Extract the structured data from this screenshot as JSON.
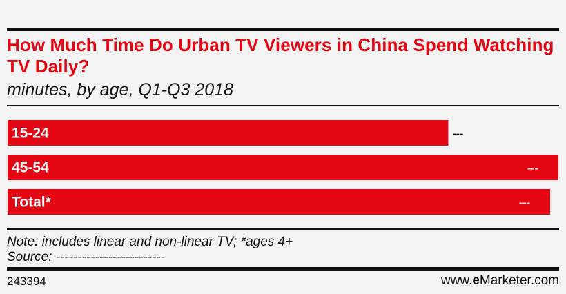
{
  "header": {
    "title": "How Much Time Do Urban TV Viewers in China Spend Watching TV Daily?",
    "subtitle": "minutes, by age, Q1-Q3 2018"
  },
  "chart_data": {
    "type": "bar",
    "orientation": "horizontal",
    "title": "How Much Time Do Urban TV Viewers in China Spend Watching TV Daily?",
    "subtitle": "minutes, by age, Q1-Q3 2018",
    "categories": [
      "15-24",
      "45-54",
      "Total*"
    ],
    "values": [
      0.8,
      1.0,
      0.985
    ],
    "value_scale": "relative to longest bar",
    "value_labels": [
      "---",
      "---",
      "---"
    ],
    "bar_color": "#e30613",
    "grid": false,
    "legend": "none"
  },
  "footer": {
    "note": "Note: includes linear and non-linear TV; *ages 4+",
    "source": "Source: -------------------------",
    "chart_id": "243394",
    "brand_prefix": "www.",
    "brand_e": "e",
    "brand_name": "Marketer",
    "brand_suffix": ".com"
  },
  "colors": {
    "accent": "#e30613",
    "text": "#111111",
    "background": "#f3f3f3"
  }
}
